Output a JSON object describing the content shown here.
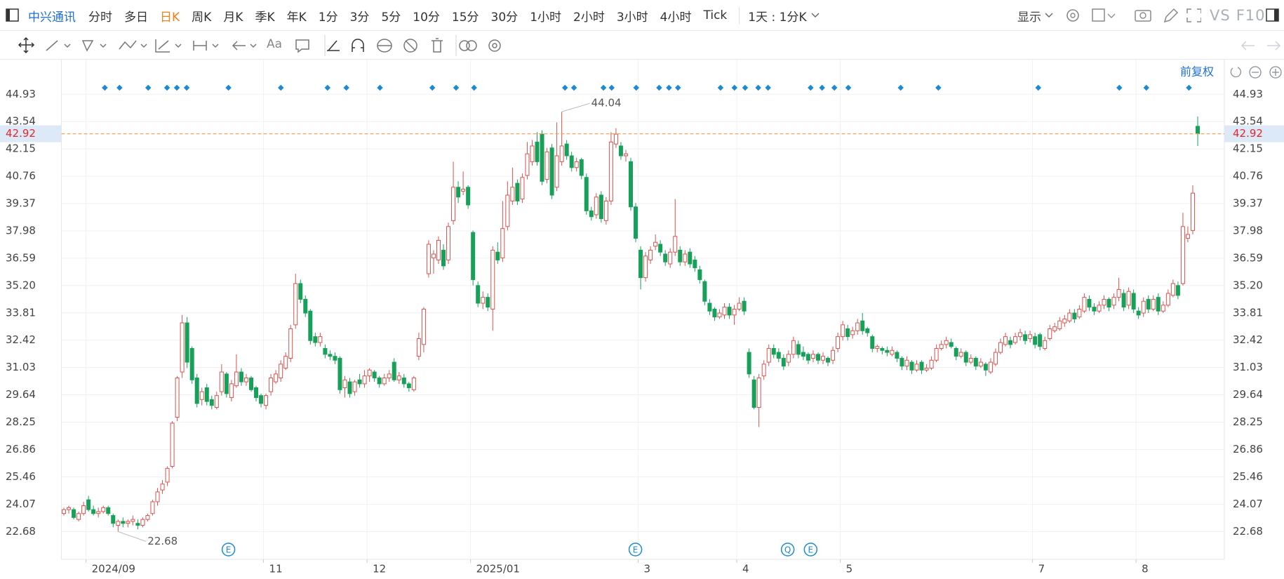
{
  "toolbar": {
    "stock": "中兴通讯",
    "periods": [
      "分时",
      "多日",
      "日K",
      "周K",
      "月K",
      "季K",
      "年K",
      "1分",
      "3分",
      "5分",
      "10分",
      "15分",
      "30分",
      "1小时",
      "2小时",
      "3小时",
      "4小时",
      "Tick"
    ],
    "active_period": 2,
    "range": "1天 : 1分K",
    "display": "显示",
    "vs": "VS",
    "f10": "F10",
    "text_tool": "Aa",
    "adjust": "前复权"
  },
  "chart_data": {
    "type": "candlestick",
    "categories": [
      null,
      null,
      null,
      null,
      null,
      "2024/09",
      null,
      null,
      null,
      null,
      null,
      null,
      null,
      null,
      null,
      null,
      null,
      null,
      null,
      null,
      null,
      null,
      null,
      null,
      null,
      null,
      null,
      null,
      null,
      null,
      null,
      null,
      null,
      null,
      null,
      null,
      null,
      null,
      null,
      null,
      null,
      "11",
      null,
      null,
      null,
      null,
      null,
      null,
      null,
      null,
      null,
      null,
      null,
      null,
      null,
      null,
      null,
      null,
      null,
      null,
      null,
      null,
      "12",
      null,
      null,
      null,
      null,
      null,
      null,
      null,
      null,
      null,
      null,
      null,
      null,
      null,
      null,
      null,
      null,
      null,
      null,
      null,
      null,
      "2025/01",
      null,
      null,
      null,
      null,
      null,
      null,
      null,
      null,
      null,
      null,
      null,
      null,
      null,
      null,
      null,
      null,
      null,
      null,
      null,
      null,
      null,
      null,
      null,
      null,
      null,
      null,
      null,
      null,
      null,
      null,
      null,
      null,
      null,
      "3",
      null,
      null,
      null,
      null,
      null,
      null,
      null,
      null,
      null,
      null,
      null,
      null,
      null,
      null,
      null,
      null,
      null,
      null,
      null,
      "4",
      null,
      null,
      null,
      null,
      null,
      null,
      null,
      null,
      null,
      null,
      null,
      null,
      null,
      null,
      null,
      null,
      null,
      null,
      null,
      null,
      "5",
      null,
      null,
      null,
      null,
      null,
      null,
      null,
      null,
      null,
      null,
      null,
      null,
      null,
      null,
      null,
      null,
      null,
      null,
      null,
      null,
      null,
      null,
      null,
      null,
      null,
      null,
      null,
      null,
      null,
      null,
      null,
      null,
      null,
      null,
      null,
      null,
      null,
      null,
      "7",
      null,
      null,
      null,
      null,
      null,
      null,
      null,
      null,
      null,
      null,
      null,
      null,
      null,
      null,
      null,
      null,
      null,
      null,
      null,
      null,
      "8",
      null,
      null,
      null,
      null,
      null,
      null,
      null,
      null,
      null,
      null,
      null,
      null
    ],
    "open": [
      23.6,
      23.8,
      23.8,
      23.3,
      23.6,
      24.3,
      23.8,
      23.6,
      23.7,
      23.9,
      23.5,
      23.0,
      23.2,
      23.1,
      23.2,
      23.1,
      23.0,
      23.3,
      23.6,
      24.2,
      24.8,
      25.2,
      26.0,
      28.5,
      30.8,
      33.3,
      32.0,
      30.5,
      29.4,
      30.0,
      29.4,
      29.0,
      29.8,
      30.7,
      29.5,
      30.1,
      30.8,
      30.3,
      30.5,
      30.0,
      29.6,
      29.1,
      29.8,
      30.3,
      30.5,
      31.0,
      31.5,
      33.2,
      35.3,
      34.5,
      33.9,
      32.6,
      32.3,
      32.0,
      31.7,
      31.6,
      31.5,
      30.0,
      30.3,
      29.8,
      30.4,
      30.2,
      30.6,
      30.8,
      30.5,
      30.2,
      30.5,
      31.3,
      30.4,
      30.5,
      30.2,
      29.9,
      31.6,
      32.2,
      35.8,
      36.6,
      36.5,
      37.0,
      36.5,
      38.5,
      40.2,
      40.0,
      40.2,
      37.9,
      35.2,
      34.3,
      34.6,
      34.0,
      36.9,
      36.6,
      38.2,
      39.5,
      40.4,
      39.6,
      40.8,
      41.5,
      42.5,
      42.9,
      40.6,
      42.2,
      40.2,
      41.5,
      42.4,
      41.8,
      41.2,
      41.6,
      40.7,
      39.0,
      38.8,
      39.8,
      38.5,
      39.5,
      42.4,
      42.3,
      41.8,
      41.5,
      39.2,
      37.0,
      35.6,
      36.5,
      37.2,
      37.3,
      36.8,
      36.3,
      36.9,
      37.0,
      36.4,
      36.9,
      36.5,
      36.0,
      35.4,
      34.3,
      34.0,
      33.6,
      33.7,
      34.1,
      33.7,
      34.0,
      34.4,
      31.8,
      30.4,
      29.0,
      30.6,
      31.3,
      32.0,
      31.8,
      31.5,
      31.3,
      31.7,
      32.2,
      31.8,
      31.7,
      31.5,
      31.7,
      31.4,
      31.5,
      31.4,
      32.0,
      32.6,
      33.0,
      32.7,
      32.9,
      33.4,
      33.0,
      32.6,
      32.0,
      32.0,
      31.9,
      31.7,
      31.8,
      31.5,
      31.1,
      31.3,
      30.9,
      31.3,
      30.9,
      31.0,
      31.4,
      32.0,
      32.2,
      32.3,
      32.0,
      31.6,
      31.8,
      31.3,
      31.5,
      31.1,
      31.2,
      30.8,
      31.2,
      31.8,
      32.2,
      32.4,
      32.3,
      32.6,
      32.7,
      32.5,
      32.6,
      32.7,
      32.0,
      32.5,
      32.9,
      33.0,
      33.3,
      33.4,
      33.8,
      33.6,
      33.9,
      34.5,
      34.1,
      33.9,
      34.2,
      34.5,
      34.2,
      34.6,
      34.8,
      34.2,
      34.8,
      33.9,
      33.8,
      34.5,
      34.0,
      34.6,
      33.9,
      34.2,
      34.7,
      35.2,
      35.3,
      37.6,
      38.0,
      43.3
    ],
    "high": [
      23.9,
      24.0,
      23.9,
      23.7,
      24.2,
      24.5,
      24.0,
      23.9,
      24.0,
      24.0,
      23.6,
      23.3,
      23.4,
      23.3,
      23.5,
      23.3,
      23.4,
      23.6,
      24.3,
      24.9,
      25.3,
      26.0,
      28.3,
      30.6,
      33.7,
      33.6,
      32.1,
      30.7,
      30.0,
      30.2,
      29.6,
      29.8,
      31.2,
      30.8,
      30.4,
      31.7,
      31.0,
      30.7,
      30.6,
      30.1,
      29.7,
      29.7,
      30.7,
      30.9,
      31.4,
      31.8,
      33.2,
      35.8,
      35.5,
      34.7,
      34.0,
      32.8,
      32.8,
      32.2,
      31.9,
      31.8,
      31.6,
      30.6,
      30.5,
      30.4,
      30.7,
      30.9,
      31.0,
      30.9,
      30.6,
      30.7,
      30.9,
      31.5,
      30.8,
      30.7,
      30.3,
      30.6,
      32.8,
      34.1,
      37.5,
      37.0,
      37.7,
      37.3,
      38.4,
      41.5,
      40.5,
      41.0,
      40.3,
      38.0,
      35.4,
      34.9,
      34.8,
      37.2,
      37.4,
      39.5,
      40.5,
      41.2,
      40.6,
      40.9,
      42.5,
      42.6,
      43.0,
      43.1,
      42.2,
      42.4,
      43.5,
      44.04,
      42.6,
      42.0,
      41.7,
      41.7,
      40.9,
      39.2,
      39.9,
      40.0,
      39.7,
      43.0,
      43.2,
      42.5,
      42.1,
      41.7,
      39.4,
      37.2,
      36.9,
      37.2,
      37.8,
      37.5,
      37.0,
      37.1,
      39.6,
      37.2,
      37.0,
      37.1,
      36.7,
      36.2,
      35.5,
      34.5,
      34.1,
      34.0,
      34.3,
      34.3,
      34.2,
      34.6,
      34.6,
      32.0,
      30.6,
      30.7,
      31.4,
      32.2,
      32.2,
      32.0,
      31.7,
      31.9,
      32.6,
      32.4,
      32.1,
      31.8,
      31.9,
      31.8,
      31.8,
      31.6,
      32.1,
      32.8,
      33.4,
      33.2,
      33.1,
      33.5,
      33.8,
      33.1,
      32.7,
      32.2,
      32.1,
      32.1,
      32.1,
      31.9,
      31.6,
      31.6,
      31.4,
      31.4,
      31.4,
      31.2,
      31.6,
      32.2,
      32.4,
      32.6,
      32.5,
      32.1,
      32.0,
      31.9,
      31.7,
      31.6,
      31.5,
      31.3,
      31.5,
      32.0,
      32.5,
      32.8,
      32.6,
      32.8,
      33.0,
      32.9,
      32.9,
      32.8,
      32.8,
      32.6,
      33.2,
      33.3,
      33.6,
      33.7,
      34.0,
      34.0,
      34.2,
      34.8,
      34.7,
      34.3,
      34.4,
      34.7,
      34.6,
      34.8,
      35.6,
      35.0,
      35.1,
      35.0,
      34.1,
      34.6,
      34.7,
      34.7,
      34.8,
      34.4,
      35.0,
      35.5,
      35.4,
      38.9,
      38.2,
      40.3,
      43.8
    ],
    "low": [
      23.5,
      23.6,
      23.3,
      23.2,
      23.5,
      23.7,
      23.5,
      23.4,
      23.6,
      23.5,
      22.9,
      22.68,
      22.9,
      22.9,
      23.0,
      22.8,
      22.9,
      23.2,
      23.5,
      24.0,
      24.6,
      25.0,
      25.9,
      28.3,
      30.5,
      31.0,
      30.2,
      29.0,
      29.1,
      29.1,
      28.9,
      28.9,
      29.6,
      29.5,
      29.3,
      30.0,
      30.1,
      30.1,
      29.8,
      29.3,
      29.0,
      28.9,
      29.6,
      30.2,
      30.3,
      30.9,
      31.3,
      33.0,
      34.3,
      33.6,
      32.2,
      32.1,
      32.1,
      31.5,
      31.4,
      31.2,
      29.7,
      29.5,
      29.5,
      29.6,
      30.0,
      30.0,
      30.3,
      30.3,
      30.0,
      30.1,
      30.3,
      30.3,
      30.2,
      30.0,
      29.8,
      29.8,
      31.4,
      31.8,
      35.6,
      35.8,
      36.3,
      36.0,
      36.3,
      38.3,
      39.4,
      39.8,
      39.1,
      35.2,
      34.1,
      34.0,
      33.9,
      32.9,
      36.3,
      36.4,
      38.0,
      39.3,
      39.3,
      39.4,
      40.6,
      41.3,
      41.3,
      40.3,
      40.4,
      39.6,
      40.0,
      41.3,
      41.6,
      41.0,
      41.0,
      40.6,
      38.8,
      38.5,
      38.6,
      38.4,
      38.3,
      39.3,
      42.2,
      41.6,
      41.5,
      39.0,
      37.4,
      35.0,
      35.4,
      36.3,
      37.0,
      36.7,
      36.2,
      36.1,
      36.7,
      36.2,
      36.2,
      36.1,
      35.9,
      35.3,
      34.2,
      33.7,
      33.4,
      33.5,
      33.5,
      33.5,
      33.2,
      33.9,
      33.7,
      30.5,
      28.9,
      28.0,
      30.4,
      31.1,
      31.5,
      31.3,
      30.9,
      31.1,
      31.5,
      31.5,
      31.4,
      31.2,
      31.3,
      31.2,
      31.2,
      31.1,
      31.2,
      31.8,
      32.4,
      32.4,
      32.5,
      32.7,
      32.7,
      32.6,
      31.8,
      31.8,
      31.7,
      31.6,
      31.6,
      31.3,
      30.9,
      30.9,
      30.7,
      30.8,
      30.7,
      30.8,
      30.9,
      31.3,
      31.9,
      32.0,
      32.0,
      31.4,
      31.5,
      31.1,
      31.2,
      30.9,
      31.0,
      30.6,
      30.7,
      31.1,
      31.7,
      32.1,
      32.0,
      32.2,
      32.4,
      32.2,
      32.3,
      32.0,
      31.9,
      31.9,
      32.4,
      32.8,
      32.9,
      33.1,
      33.3,
      33.3,
      33.5,
      33.8,
      33.9,
      33.7,
      33.8,
      34.0,
      33.9,
      34.0,
      34.4,
      33.9,
      34.0,
      33.8,
      33.5,
      33.6,
      33.8,
      33.9,
      33.7,
      33.8,
      34.1,
      34.6,
      34.5,
      35.2,
      37.4,
      37.8,
      42.3
    ],
    "close": [
      23.8,
      23.9,
      23.4,
      23.6,
      24.0,
      23.8,
      23.6,
      23.7,
      23.9,
      23.6,
      23.1,
      23.2,
      23.1,
      23.2,
      23.3,
      23.0,
      23.3,
      23.5,
      24.2,
      24.7,
      25.1,
      25.9,
      28.2,
      30.5,
      33.3,
      31.3,
      30.4,
      29.2,
      29.8,
      29.3,
      29.1,
      29.6,
      30.8,
      29.7,
      30.2,
      30.8,
      30.3,
      30.5,
      29.9,
      29.5,
      29.2,
      29.6,
      30.5,
      30.7,
      31.2,
      31.6,
      33.0,
      35.3,
      34.5,
      33.8,
      32.4,
      32.3,
      32.6,
      31.7,
      31.6,
      31.4,
      29.9,
      30.4,
      29.7,
      30.3,
      30.2,
      30.6,
      30.9,
      30.5,
      30.2,
      30.5,
      30.7,
      30.4,
      30.6,
      30.2,
      30.0,
      30.5,
      32.5,
      34.0,
      37.3,
      36.8,
      37.5,
      36.2,
      38.2,
      40.2,
      39.7,
      40.1,
      39.3,
      35.5,
      34.3,
      34.6,
      34.1,
      37.0,
      36.5,
      38.1,
      39.8,
      40.2,
      39.5,
      40.7,
      41.9,
      42.3,
      41.5,
      40.5,
      42.0,
      39.8,
      41.8,
      42.3,
      41.8,
      41.2,
      41.5,
      40.8,
      39.0,
      38.7,
      39.7,
      38.6,
      39.5,
      42.5,
      42.9,
      41.8,
      41.9,
      39.2,
      37.6,
      35.6,
      36.7,
      37.0,
      37.4,
      36.9,
      36.4,
      36.9,
      37.7,
      36.4,
      36.8,
      36.3,
      36.1,
      35.5,
      34.4,
      33.9,
      33.6,
      33.8,
      34.1,
      33.7,
      34.0,
      34.3,
      33.9,
      30.7,
      29.0,
      30.5,
      31.2,
      32.0,
      31.7,
      31.5,
      31.1,
      31.7,
      32.4,
      31.7,
      31.6,
      31.4,
      31.7,
      31.4,
      31.6,
      31.3,
      31.9,
      32.6,
      33.2,
      32.6,
      32.9,
      33.3,
      32.9,
      32.8,
      32.0,
      32.1,
      31.9,
      31.8,
      31.9,
      31.5,
      31.1,
      31.4,
      30.9,
      31.2,
      30.9,
      31.0,
      31.4,
      32.0,
      32.2,
      32.4,
      32.1,
      31.6,
      31.8,
      31.3,
      31.5,
      31.1,
      31.3,
      30.9,
      31.3,
      31.8,
      32.3,
      32.6,
      32.2,
      32.6,
      32.8,
      32.4,
      32.7,
      32.2,
      32.1,
      32.4,
      33.0,
      33.1,
      33.4,
      33.5,
      33.8,
      33.5,
      34.0,
      34.6,
      34.1,
      33.9,
      34.2,
      34.5,
      34.1,
      34.6,
      35.0,
      34.1,
      34.9,
      34.0,
      33.7,
      34.4,
      34.0,
      34.5,
      33.9,
      34.2,
      34.8,
      35.3,
      34.7,
      38.2,
      37.8,
      39.9,
      42.92
    ],
    "up_color": "#d9534f",
    "down_color": "#17a05a",
    "last_price": 42.92,
    "last_price_color": "#e0282e",
    "last_line_color": "#f0a35e",
    "high_mark": 101,
    "low_mark": 11,
    "event_badges": [
      "E",
      "E",
      "Q",
      "E"
    ],
    "ylim": [
      21.27,
      46.69
    ],
    "yticks": [
      22.68,
      24.07,
      25.46,
      26.86,
      28.25,
      29.64,
      31.03,
      32.42,
      33.81,
      {
        "value": 35.2,
        "label": "35.20"
      },
      36.59,
      37.98,
      39.37,
      40.76,
      42.15,
      43.54,
      44.93
    ],
    "grid": true
  }
}
